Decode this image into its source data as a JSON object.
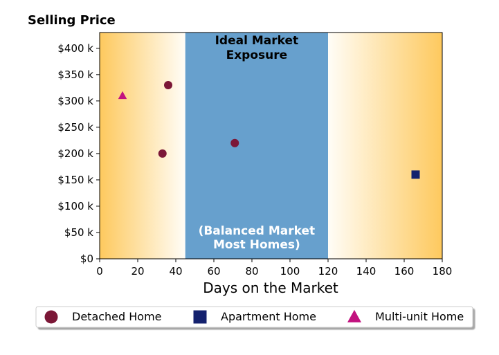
{
  "chart_data": {
    "type": "scatter",
    "title": "Selling Price",
    "xlabel": "Days on the Market",
    "ylabel": "",
    "xlim": [
      0,
      180
    ],
    "ylim": [
      0,
      430000
    ],
    "x_ticks": [
      0,
      20,
      40,
      60,
      80,
      100,
      120,
      140,
      160,
      180
    ],
    "x_tick_labels": [
      "0",
      "20",
      "40",
      "60",
      "80",
      "100",
      "120",
      "140",
      "160",
      "180"
    ],
    "y_ticks": [
      0,
      50000,
      100000,
      150000,
      200000,
      250000,
      300000,
      350000,
      400000
    ],
    "y_tick_labels": [
      "$0",
      "$50 k",
      "$100 k",
      "$150 k",
      "$200 k",
      "$250 k",
      "$300 k",
      "$350 k",
      "$400 k"
    ],
    "grid": false,
    "band": {
      "x_range": [
        45,
        120
      ],
      "color": "#67a0cd",
      "top_label_lines": [
        "Ideal Market",
        "Exposure"
      ],
      "bottom_label_lines": [
        "(Balanced Market",
        "Most Homes)"
      ]
    },
    "background_gradient": {
      "edge_color": "#fec95e",
      "center_color": "#fffdf7"
    },
    "series": [
      {
        "name": "Detached Home",
        "marker": "circle",
        "color": "#7b1737",
        "points": [
          {
            "x": 36,
            "y": 330000
          },
          {
            "x": 33,
            "y": 200000
          },
          {
            "x": 71,
            "y": 220000
          }
        ]
      },
      {
        "name": "Apartment Home",
        "marker": "square",
        "color": "#14216e",
        "points": [
          {
            "x": 166,
            "y": 160000
          }
        ]
      },
      {
        "name": "Multi-unit Home",
        "marker": "triangle",
        "color": "#c2127f",
        "points": [
          {
            "x": 12,
            "y": 310000
          }
        ]
      }
    ],
    "legend_placement": "bottom"
  }
}
